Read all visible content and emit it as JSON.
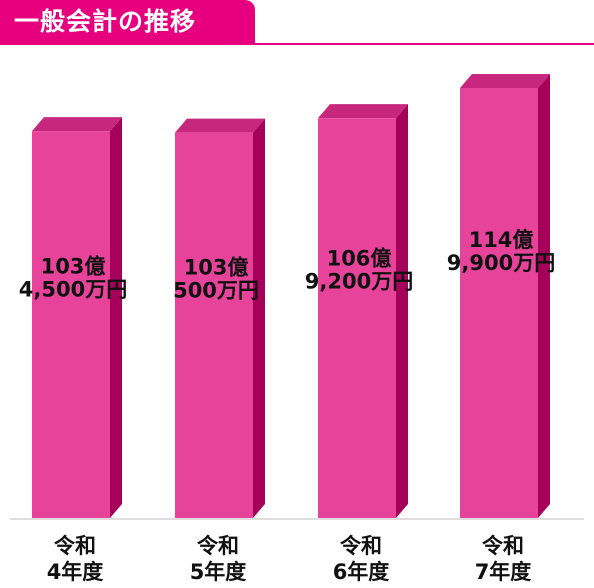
{
  "title": "一般会計の推移",
  "colors": {
    "accent": "#e6007e",
    "bar_front": "#e8439a",
    "bar_side": "#a5005a",
    "bar_top": "#c7287d"
  },
  "chart_data": {
    "type": "bar",
    "title": "一般会計の推移",
    "categories": [
      [
        "令和",
        "4年度"
      ],
      [
        "令和",
        "5年度"
      ],
      [
        "令和",
        "6年度"
      ],
      [
        "令和",
        "7年度"
      ]
    ],
    "values_yen": [
      10345000000,
      10305000000,
      10692000000,
      11499000000
    ],
    "data_labels": [
      [
        "103億",
        "4,500万円"
      ],
      [
        "103億",
        "500万円"
      ],
      [
        "106億",
        "9,200万円"
      ],
      [
        "114億",
        "9,900万円"
      ]
    ],
    "ylim": [
      0,
      11499000000
    ],
    "grid": false,
    "legend": "none"
  }
}
